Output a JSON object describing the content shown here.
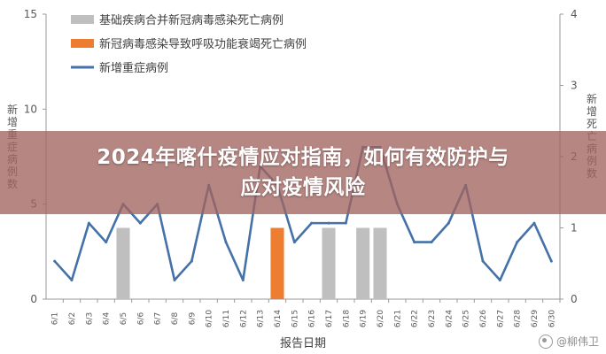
{
  "chart_data": {
    "type": "bar+line",
    "x_label": "报告日期",
    "y_left_label": "新增重症病例数",
    "y_right_label": "新增死亡病例数",
    "y_left_range": [
      0,
      15
    ],
    "y_left_ticks": [
      "0",
      "5",
      "10",
      "15"
    ],
    "y_right_range": [
      0,
      4
    ],
    "y_right_ticks": [
      "0",
      "1",
      "2",
      "3",
      "4"
    ],
    "categories": [
      "6/1",
      "6/2",
      "6/3",
      "6/4",
      "6/5",
      "6/6",
      "6/7",
      "6/8",
      "6/9",
      "6/10",
      "6/11",
      "6/12",
      "6/13",
      "6/14",
      "6/15",
      "6/16",
      "6/17",
      "6/18",
      "6/19",
      "6/20",
      "6/21",
      "6/22",
      "6/23",
      "6/24",
      "6/25",
      "6/26",
      "6/27",
      "6/28",
      "6/29",
      "6/30"
    ],
    "legend": [
      {
        "label": "基础疾病合并新冠病毒感染死亡病例",
        "color": "#bfbfbf",
        "kind": "bar"
      },
      {
        "label": "新冠病毒感染导致呼吸功能衰竭死亡病例",
        "color": "#ed7d31",
        "kind": "bar"
      },
      {
        "label": "新增重症病例",
        "color": "#4472a8",
        "kind": "line"
      }
    ],
    "series": [
      {
        "name": "基础疾病合并新冠病毒感染死亡病例",
        "axis": "right",
        "values": [
          0,
          0,
          0,
          0,
          1,
          0,
          0,
          0,
          0,
          0,
          0,
          0,
          0,
          0,
          0,
          0,
          1,
          0,
          1,
          1,
          0,
          0,
          0,
          0,
          0,
          0,
          0,
          0,
          0,
          0
        ]
      },
      {
        "name": "新冠病毒感染导致呼吸功能衰竭死亡病例",
        "axis": "right",
        "values": [
          0,
          0,
          0,
          0,
          0,
          0,
          0,
          0,
          0,
          0,
          0,
          0,
          0,
          1,
          0,
          0,
          0,
          0,
          0,
          0,
          0,
          0,
          0,
          0,
          0,
          0,
          0,
          0,
          0,
          0
        ]
      },
      {
        "name": "新增重症病例",
        "axis": "left",
        "values": [
          2,
          1,
          4,
          3,
          5,
          4,
          5,
          1,
          2,
          6,
          3,
          1,
          7,
          6,
          3,
          4,
          4,
          4,
          8,
          8,
          5,
          3,
          3,
          4,
          6,
          2,
          1,
          3,
          4,
          2
        ]
      }
    ]
  },
  "overlay_title": [
    "2024年喀什疫情应对指南，如何有效防护与",
    "应对疫情风险"
  ],
  "watermark": "@柳伟卫"
}
